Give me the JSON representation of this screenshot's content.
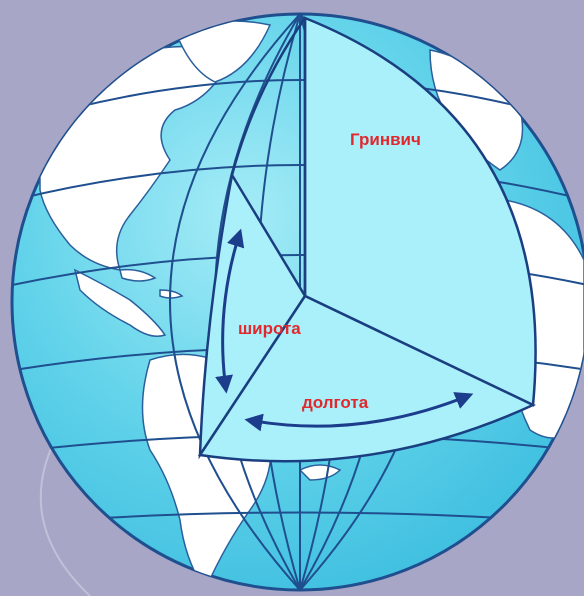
{
  "labels": {
    "greenwich": "Гринвич",
    "latitude": "широта",
    "longitude": "долгота"
  },
  "colors": {
    "background": "#a7a6c6",
    "ocean": "#62d3ea",
    "ocean_highlight": "#a6ecf7",
    "land": "#ffffff",
    "grid_line": "#1f4f8f",
    "cutaway_face": "#a9f0fb",
    "cutaway_edge": "#1a3e80",
    "arrow": "#1c3c8c",
    "label_text": "#e0282d"
  },
  "icons": {
    "latitude_arrow": "double-headed-arrow-vertical",
    "longitude_arrow": "double-headed-arrow-horizontal"
  }
}
